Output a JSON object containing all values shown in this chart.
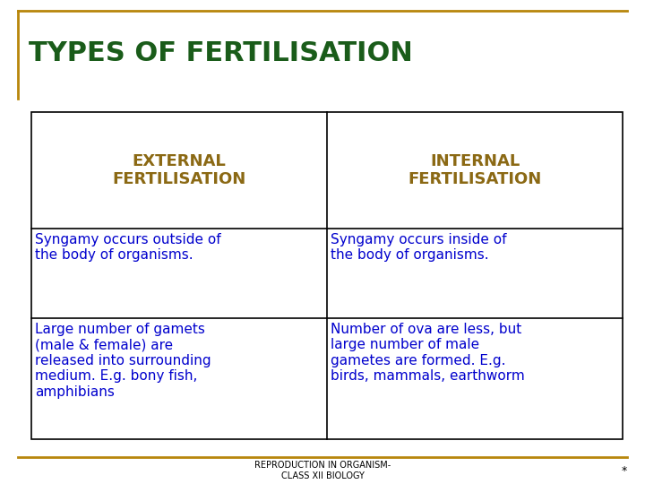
{
  "title": "TYPES OF FERTILISATION",
  "title_color": "#1a5c1a",
  "title_fontsize": 22,
  "bg_color": "#FFFFFF",
  "border_color": "#B8860B",
  "table_border_color": "#000000",
  "col1_header": "EXTERNAL\nFERTILISATION",
  "col2_header": "INTERNAL\nFERTILISATION",
  "header_color": "#8B6914",
  "header_fontsize": 13,
  "col1_row1": "Syngamy occurs outside of\nthe body of organisms.",
  "col2_row1": "Syngamy occurs inside of\nthe body of organisms.",
  "col1_row2": "Large number of gamets\n(male & female) are\nreleased into surrounding\nmedium. E.g. bony fish,\namphibians",
  "col2_row2": "Number of ova are less, but\nlarge number of male\ngametes are formed. E.g.\nbirds, mammals, earthworm",
  "body_color": "#0000CD",
  "body_fontsize": 11,
  "footer_text": "REPRODUCTION IN ORGANISM-\nCLASS XII BIOLOGY",
  "footer_color": "#000000",
  "footer_fontsize": 7,
  "star_text": "*"
}
